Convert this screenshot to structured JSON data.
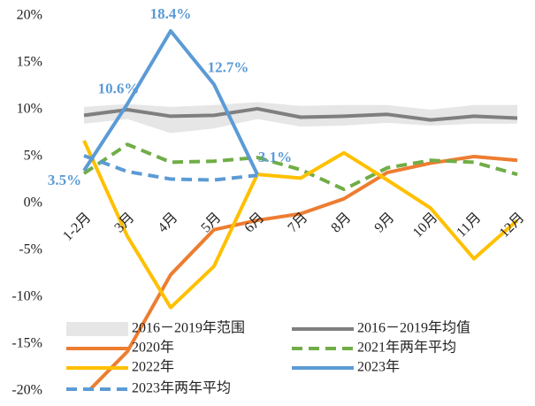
{
  "chart_data": {
    "type": "line",
    "categories": [
      "1-2月",
      "3月",
      "4月",
      "5月",
      "6月",
      "7月",
      "8月",
      "9月",
      "10月",
      "11月",
      "12月"
    ],
    "ylim": [
      -20,
      20
    ],
    "yticks": [
      {
        "value": -20,
        "label": "-20%"
      },
      {
        "value": -15,
        "label": "-15%"
      },
      {
        "value": -10,
        "label": "-10%"
      },
      {
        "value": -5,
        "label": "-5%"
      },
      {
        "value": 0,
        "label": "0%"
      },
      {
        "value": 5,
        "label": "5%"
      },
      {
        "value": 10,
        "label": "10%"
      },
      {
        "value": 15,
        "label": "15%"
      },
      {
        "value": 20,
        "label": "20%"
      }
    ],
    "band": {
      "name": "2016－2019年范围",
      "color": "#e6e6e6",
      "low": [
        8.5,
        9.0,
        7.5,
        8.0,
        9.0,
        8.2,
        8.3,
        8.6,
        8.3,
        8.5,
        8.5
      ],
      "high": [
        10.3,
        10.6,
        10.3,
        10.5,
        10.8,
        10.4,
        10.5,
        10.5,
        10.0,
        10.5,
        10.5
      ]
    },
    "series": [
      {
        "name": "2016－2019年均值",
        "color": "#7f7f7f",
        "values": [
          9.4,
          10.0,
          9.3,
          9.4,
          10.1,
          9.2,
          9.3,
          9.5,
          8.9,
          9.3,
          9.1
        ]
      },
      {
        "name": "2020年",
        "color": "#ed7d31",
        "values": [
          -20.5,
          -15.8,
          -7.6,
          -2.8,
          -1.8,
          -1.1,
          0.5,
          3.3,
          4.3,
          5.0,
          4.6
        ]
      },
      {
        "name": "2021年两年平均",
        "color": "#70ad47",
        "dashed": true,
        "values": [
          3.2,
          6.3,
          4.4,
          4.5,
          4.9,
          3.6,
          1.5,
          3.8,
          4.6,
          4.4,
          3.1
        ]
      },
      {
        "name": "2022年",
        "color": "#ffc000",
        "values": [
          6.7,
          -3.5,
          -11.1,
          -6.7,
          3.1,
          2.7,
          5.4,
          2.5,
          -0.5,
          -5.9,
          -1.8
        ]
      },
      {
        "name": "2023年",
        "color": "#5b9bd5",
        "values": [
          3.5,
          10.6,
          18.4,
          12.7,
          3.1,
          null,
          null,
          null,
          null,
          null,
          null
        ],
        "value_labels": [
          "3.5%",
          "10.6%",
          "18.4%",
          "12.7%",
          "3.1%",
          null,
          null,
          null,
          null,
          null,
          null
        ]
      },
      {
        "name": "2023年两年平均",
        "color": "#5b9bd5",
        "dashed": true,
        "values": [
          5.1,
          3.4,
          2.6,
          2.5,
          3.0,
          null,
          null,
          null,
          null,
          null,
          null
        ]
      }
    ]
  }
}
